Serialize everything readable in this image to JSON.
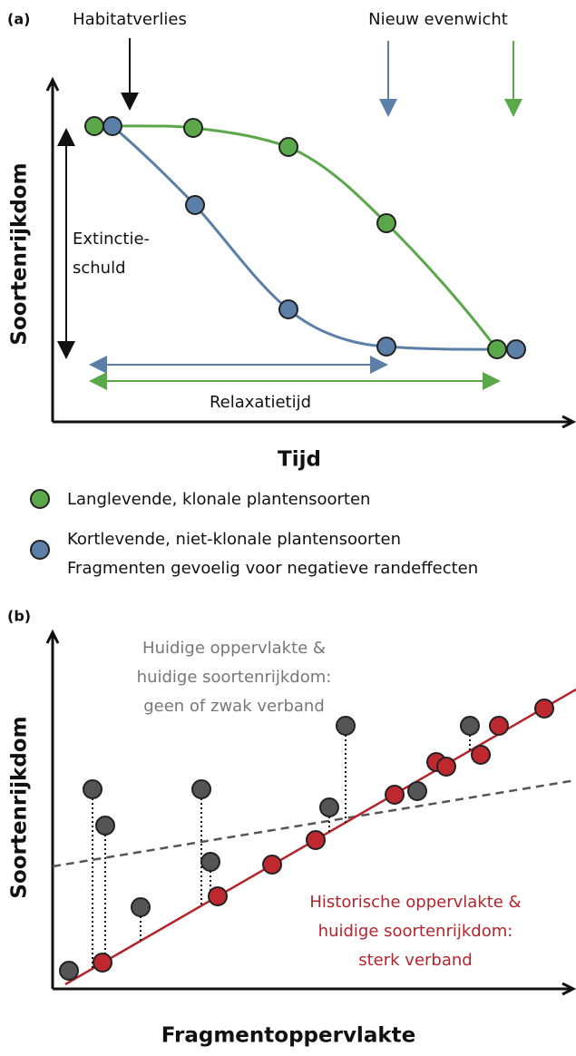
{
  "panel_a": {
    "label": "(a)",
    "annotation_left": "Habitatverlies",
    "annotation_right": "Nieuw evenwicht",
    "debt_label": [
      "Extinctie-",
      "schuld"
    ],
    "relaxation_label": "Relaxatietijd",
    "y_label": "Soortenrijkdom",
    "x_label": "Tijd",
    "legend": [
      {
        "color": "#5aa84a",
        "lines": [
          "Langlevende, klonale plantensoorten"
        ]
      },
      {
        "color": "#5b7fa6",
        "lines": [
          "Kortlevende, niet-klonale plantensoorten",
          "Fragmenten gevoelig voor negatieve randeffecten"
        ]
      }
    ]
  },
  "panel_b": {
    "label": "(b)",
    "current_text": [
      "Huidige oppervlakte &",
      "huidige soortenrijkdom:",
      "geen of zwak verband"
    ],
    "historic_text": [
      "Historische oppervlakte &",
      "huidige soortenrijkdom:",
      "sterk verband"
    ],
    "y_label": "Soortenrijkdom",
    "x_label": "Fragmentoppervlakte"
  }
}
